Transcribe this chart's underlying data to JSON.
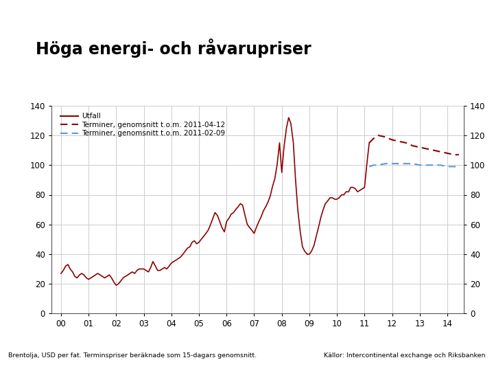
{
  "title": "Höga energi- och råvarupriser",
  "footnote_left": "Brentolja, USD per fat. Terminspriser beräknade som 15-dagars genomsnitt.",
  "footnote_right": "Källor: Intercontinental exchange och Riksbanken",
  "ylim": [
    0,
    140
  ],
  "yticks": [
    0,
    20,
    40,
    60,
    80,
    100,
    120,
    140
  ],
  "xtick_labels": [
    "00",
    "01",
    "02",
    "03",
    "04",
    "05",
    "06",
    "07",
    "08",
    "09",
    "10",
    "11",
    "12",
    "13",
    "14"
  ],
  "legend": [
    {
      "label": "Utfall",
      "color": "#8B0000",
      "linestyle": "solid",
      "linewidth": 1.5
    },
    {
      "label": "Terminer, genomsnitt t.o.m. 2011-04-12",
      "color": "#8B0000",
      "linestyle": "dashed",
      "linewidth": 1.5
    },
    {
      "label": "Terminer, genomsnitt t.o.m. 2011-02-09",
      "color": "#5B9BD5",
      "linestyle": "dashed",
      "linewidth": 1.5
    }
  ],
  "background_color": "#FFFFFF",
  "grid_color": "#CCCCCC",
  "footer_bg": "#1F3B6B",
  "footer_text_color": "#000000",
  "title_color": "#000000",
  "logo_bg": "#1F3B8B",
  "utfall_x": [
    2000.0,
    2000.08,
    2000.17,
    2000.25,
    2000.33,
    2000.42,
    2000.5,
    2000.58,
    2000.67,
    2000.75,
    2000.83,
    2000.92,
    2001.0,
    2001.08,
    2001.17,
    2001.25,
    2001.33,
    2001.42,
    2001.5,
    2001.58,
    2001.67,
    2001.75,
    2001.83,
    2001.92,
    2002.0,
    2002.08,
    2002.17,
    2002.25,
    2002.33,
    2002.42,
    2002.5,
    2002.58,
    2002.67,
    2002.75,
    2002.83,
    2002.92,
    2003.0,
    2003.08,
    2003.17,
    2003.25,
    2003.33,
    2003.42,
    2003.5,
    2003.58,
    2003.67,
    2003.75,
    2003.83,
    2003.92,
    2004.0,
    2004.08,
    2004.17,
    2004.25,
    2004.33,
    2004.42,
    2004.5,
    2004.58,
    2004.67,
    2004.75,
    2004.83,
    2004.92,
    2005.0,
    2005.08,
    2005.17,
    2005.25,
    2005.33,
    2005.42,
    2005.5,
    2005.58,
    2005.67,
    2005.75,
    2005.83,
    2005.92,
    2006.0,
    2006.08,
    2006.17,
    2006.25,
    2006.33,
    2006.42,
    2006.5,
    2006.58,
    2006.67,
    2006.75,
    2006.83,
    2006.92,
    2007.0,
    2007.08,
    2007.17,
    2007.25,
    2007.33,
    2007.42,
    2007.5,
    2007.58,
    2007.67,
    2007.75,
    2007.83,
    2007.92,
    2008.0,
    2008.08,
    2008.17,
    2008.25,
    2008.33,
    2008.42,
    2008.5,
    2008.58,
    2008.67,
    2008.75,
    2008.83,
    2008.92,
    2009.0,
    2009.08,
    2009.17,
    2009.25,
    2009.33,
    2009.42,
    2009.5,
    2009.58,
    2009.67,
    2009.75,
    2009.83,
    2009.92,
    2010.0,
    2010.08,
    2010.17,
    2010.25,
    2010.33,
    2010.42,
    2010.5,
    2010.58,
    2010.67,
    2010.75,
    2010.83,
    2010.92,
    2011.0,
    2011.08,
    2011.17
  ],
  "utfall_y": [
    27,
    29,
    32,
    33,
    30,
    28,
    25,
    24,
    26,
    27,
    26,
    24,
    23,
    24,
    25,
    26,
    27,
    26,
    25,
    24,
    25,
    26,
    24,
    21,
    19,
    20,
    22,
    24,
    25,
    26,
    27,
    28,
    27,
    29,
    30,
    30,
    30,
    29,
    28,
    31,
    35,
    32,
    29,
    29,
    30,
    31,
    30,
    32,
    34,
    35,
    36,
    37,
    38,
    40,
    42,
    44,
    45,
    48,
    49,
    47,
    48,
    50,
    52,
    54,
    56,
    60,
    64,
    68,
    66,
    62,
    58,
    55,
    62,
    64,
    67,
    68,
    70,
    72,
    74,
    73,
    66,
    60,
    58,
    56,
    54,
    58,
    62,
    65,
    69,
    72,
    75,
    79,
    86,
    91,
    100,
    115,
    95,
    112,
    125,
    132,
    128,
    115,
    90,
    70,
    55,
    45,
    42,
    40,
    40,
    42,
    46,
    52,
    58,
    65,
    70,
    74,
    76,
    78,
    78,
    77,
    77,
    78,
    80,
    80,
    82,
    82,
    85,
    85,
    84,
    82,
    83,
    84,
    85,
    100,
    115
  ],
  "futures_april_x": [
    2011.17,
    2011.33,
    2011.5,
    2011.75,
    2012.0,
    2012.25,
    2012.5,
    2012.75,
    2013.0,
    2013.25,
    2013.5,
    2013.75,
    2014.0,
    2014.25,
    2014.42
  ],
  "futures_april_y": [
    115,
    118,
    120,
    119,
    117,
    116,
    115,
    113,
    112,
    111,
    110,
    109,
    108,
    107,
    107
  ],
  "futures_feb_x": [
    2011.17,
    2011.33,
    2011.5,
    2011.75,
    2012.0,
    2012.25,
    2012.5,
    2012.75,
    2013.0,
    2013.25,
    2013.5,
    2013.75,
    2014.0,
    2014.25,
    2014.42
  ],
  "futures_feb_y": [
    99,
    100,
    100,
    101,
    101,
    101,
    101,
    101,
    100,
    100,
    100,
    100,
    99,
    99,
    99
  ]
}
